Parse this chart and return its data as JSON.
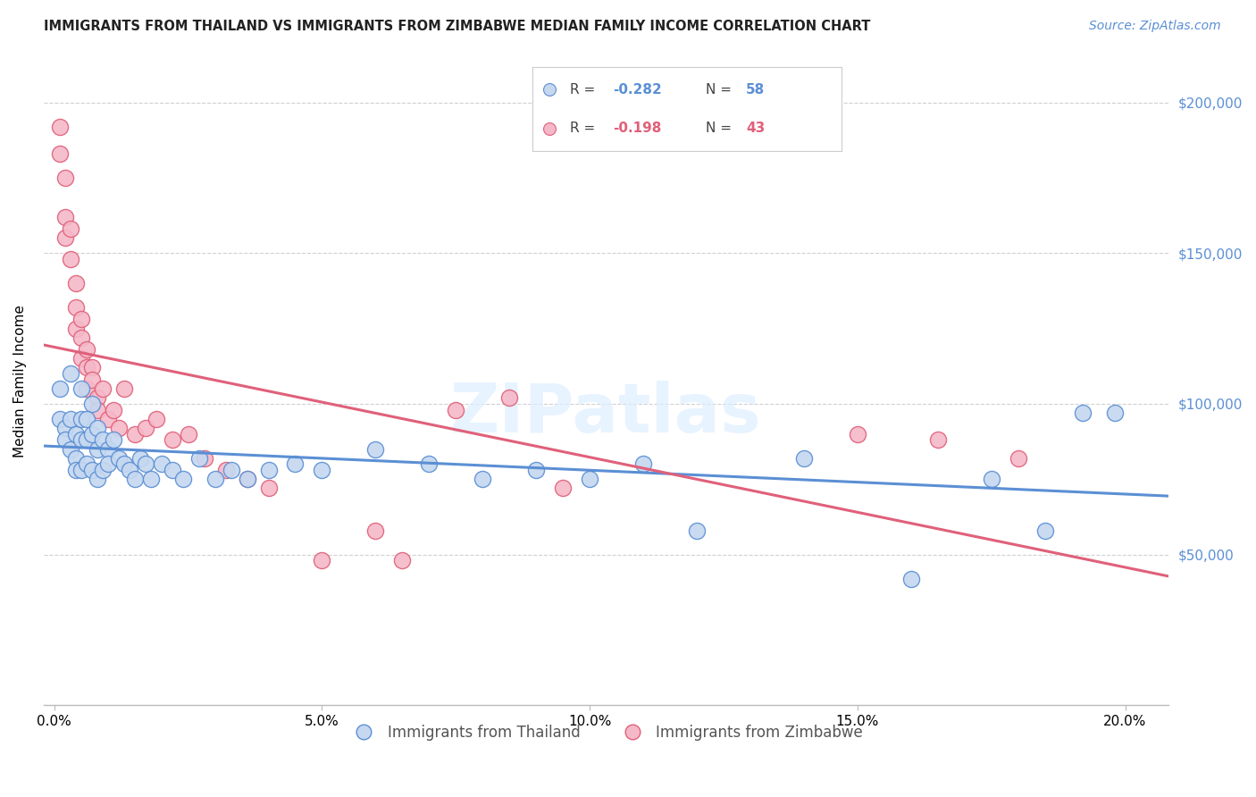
{
  "title": "IMMIGRANTS FROM THAILAND VS IMMIGRANTS FROM ZIMBABWE MEDIAN FAMILY INCOME CORRELATION CHART",
  "source": "Source: ZipAtlas.com",
  "ylabel": "Median Family Income",
  "ylabel_vals": [
    50000,
    100000,
    150000,
    200000
  ],
  "xlabel_vals": [
    0.0,
    0.05,
    0.1,
    0.15,
    0.2
  ],
  "thailand_color": "#c5d8f0",
  "thailand_line_color": "#5b8fd4",
  "zimbabwe_color": "#f5b8c8",
  "zimbabwe_line_color": "#e0607a",
  "watermark": "ZIPatlas",
  "thailand_x": [
    0.001,
    0.001,
    0.002,
    0.002,
    0.003,
    0.003,
    0.003,
    0.004,
    0.004,
    0.004,
    0.005,
    0.005,
    0.005,
    0.005,
    0.006,
    0.006,
    0.006,
    0.007,
    0.007,
    0.007,
    0.008,
    0.008,
    0.008,
    0.009,
    0.009,
    0.01,
    0.01,
    0.011,
    0.012,
    0.013,
    0.014,
    0.015,
    0.016,
    0.017,
    0.018,
    0.02,
    0.022,
    0.024,
    0.027,
    0.03,
    0.033,
    0.036,
    0.04,
    0.045,
    0.05,
    0.06,
    0.07,
    0.08,
    0.09,
    0.1,
    0.11,
    0.12,
    0.14,
    0.16,
    0.175,
    0.185,
    0.192,
    0.198
  ],
  "thailand_y": [
    105000,
    95000,
    92000,
    88000,
    110000,
    95000,
    85000,
    90000,
    82000,
    78000,
    105000,
    95000,
    88000,
    78000,
    95000,
    88000,
    80000,
    100000,
    90000,
    78000,
    92000,
    85000,
    75000,
    88000,
    78000,
    85000,
    80000,
    88000,
    82000,
    80000,
    78000,
    75000,
    82000,
    80000,
    75000,
    80000,
    78000,
    75000,
    82000,
    75000,
    78000,
    75000,
    78000,
    80000,
    78000,
    85000,
    80000,
    75000,
    78000,
    75000,
    80000,
    58000,
    82000,
    42000,
    75000,
    58000,
    97000,
    97000
  ],
  "zimbabwe_x": [
    0.001,
    0.001,
    0.002,
    0.002,
    0.002,
    0.003,
    0.003,
    0.004,
    0.004,
    0.004,
    0.005,
    0.005,
    0.005,
    0.006,
    0.006,
    0.006,
    0.007,
    0.007,
    0.008,
    0.008,
    0.009,
    0.01,
    0.011,
    0.012,
    0.013,
    0.015,
    0.017,
    0.019,
    0.022,
    0.025,
    0.028,
    0.032,
    0.036,
    0.04,
    0.05,
    0.06,
    0.065,
    0.075,
    0.085,
    0.095,
    0.15,
    0.165,
    0.18
  ],
  "zimbabwe_y": [
    192000,
    183000,
    175000,
    162000,
    155000,
    158000,
    148000,
    140000,
    132000,
    125000,
    128000,
    122000,
    115000,
    118000,
    112000,
    105000,
    112000,
    108000,
    102000,
    98000,
    105000,
    95000,
    98000,
    92000,
    105000,
    90000,
    92000,
    95000,
    88000,
    90000,
    82000,
    78000,
    75000,
    72000,
    48000,
    58000,
    48000,
    98000,
    102000,
    72000,
    90000,
    88000,
    82000
  ],
  "ylim": [
    0,
    215000
  ],
  "xlim": [
    -0.002,
    0.208
  ],
  "background_color": "#ffffff",
  "grid_color": "#d0d0d0",
  "title_fontsize": 10.5,
  "source_fontsize": 10,
  "axis_label_fontsize": 11,
  "tick_fontsize": 11,
  "legend_R_val_thailand": "-0.282",
  "legend_N_val_thailand": "58",
  "legend_R_val_zimbabwe": "-0.198",
  "legend_N_val_zimbabwe": "43"
}
